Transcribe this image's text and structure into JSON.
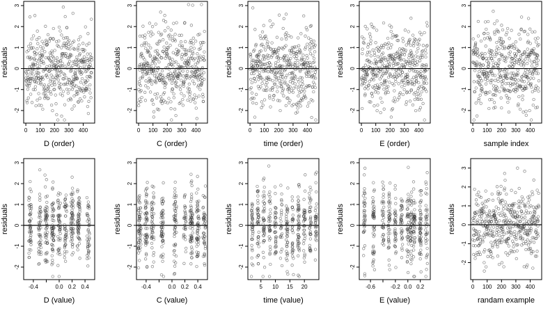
{
  "chart_data": [
    {
      "type": "scatter",
      "xlabel": "D (order)",
      "ylabel": "residuals",
      "xlim": [
        -15,
        480
      ],
      "ylim": [
        -2.6,
        3.2
      ],
      "xticks": [
        0,
        100,
        200,
        300,
        400
      ],
      "yticks": [
        -2,
        -1,
        0,
        1,
        2,
        3
      ],
      "reference_line_y": 0,
      "grid": false,
      "point_color": "#333333",
      "xmode": "order",
      "pattern": "flat"
    },
    {
      "type": "scatter",
      "xlabel": "C (order)",
      "ylabel": "residuals",
      "xlim": [
        -15,
        480
      ],
      "ylim": [
        -2.6,
        3.2
      ],
      "xticks": [
        0,
        100,
        200,
        300,
        400
      ],
      "yticks": [
        -2,
        -1,
        0,
        1,
        2,
        3
      ],
      "reference_line_y": 0,
      "grid": false,
      "point_color": "#333333",
      "xmode": "order",
      "pattern": "flat"
    },
    {
      "type": "scatter",
      "xlabel": "time (order)",
      "ylabel": "residuals",
      "xlim": [
        -15,
        480
      ],
      "ylim": [
        -2.6,
        3.2
      ],
      "xticks": [
        0,
        100,
        200,
        300,
        400
      ],
      "yticks": [
        -2,
        -1,
        0,
        1,
        2,
        3
      ],
      "reference_line_y": 0,
      "grid": false,
      "point_color": "#333333",
      "xmode": "order",
      "pattern": "flat"
    },
    {
      "type": "scatter",
      "xlabel": "E (order)",
      "ylabel": "residuals",
      "xlim": [
        -15,
        480
      ],
      "ylim": [
        -2.6,
        3.2
      ],
      "xticks": [
        0,
        100,
        200,
        300,
        400
      ],
      "yticks": [
        -2,
        -1,
        0,
        1,
        2,
        3
      ],
      "reference_line_y": 0,
      "grid": false,
      "point_color": "#333333",
      "xmode": "order",
      "pattern": "flat"
    },
    {
      "type": "scatter",
      "xlabel": "sample index",
      "ylabel": "residuals",
      "xlim": [
        -15,
        480
      ],
      "ylim": [
        -2.6,
        3.2
      ],
      "xticks": [
        0,
        100,
        200,
        300,
        400
      ],
      "yticks": [
        -2,
        -1,
        0,
        1,
        2,
        3
      ],
      "reference_line_y": 0,
      "grid": false,
      "point_color": "#333333",
      "xmode": "order",
      "pattern": "flat"
    },
    {
      "type": "scatter",
      "xlabel": "D (value)",
      "ylabel": "residuals",
      "xlim": [
        -0.55,
        0.55
      ],
      "ylim": [
        -2.6,
        3.2
      ],
      "xticks": [
        -0.4,
        -0.2,
        0.0,
        0.2,
        0.4
      ],
      "xticklabels": [
        "-0.4",
        "",
        "0.0",
        "0.2",
        "0.4"
      ],
      "yticks": [
        -2,
        -1,
        0,
        1,
        2,
        3
      ],
      "reference_line_y": 0,
      "grid": false,
      "point_color": "#333333",
      "xmode": "value",
      "stripes": [
        -0.45,
        -0.3,
        -0.2,
        -0.1,
        0.0,
        0.1,
        0.2,
        0.3,
        0.45
      ],
      "jitter": 0.02
    },
    {
      "type": "scatter",
      "xlabel": "C (value)",
      "ylabel": "residuals",
      "xlim": [
        -0.55,
        0.55
      ],
      "ylim": [
        -2.6,
        3.2
      ],
      "xticks": [
        -0.4,
        -0.2,
        0.0,
        0.2,
        0.4
      ],
      "xticklabels": [
        "-0.4",
        "",
        "0.0",
        "0.2",
        "0.4"
      ],
      "yticks": [
        -2,
        -1,
        0,
        1,
        2,
        3
      ],
      "reference_line_y": 0,
      "grid": false,
      "point_color": "#333333",
      "xmode": "value",
      "stripes": [
        -0.5,
        -0.4,
        -0.3,
        -0.15,
        0.05,
        0.2,
        0.3,
        0.4,
        0.5
      ],
      "jitter": 0.02
    },
    {
      "type": "scatter",
      "xlabel": "time (value)",
      "ylabel": "residuals",
      "xlim": [
        0.5,
        25
      ],
      "ylim": [
        -2.6,
        3.2
      ],
      "xticks": [
        5,
        10,
        15,
        20
      ],
      "yticks": [
        -2,
        -1,
        0,
        1,
        2,
        3
      ],
      "reference_line_y": 0,
      "grid": false,
      "point_color": "#333333",
      "xmode": "value",
      "stripes": [
        2,
        4,
        6,
        8,
        10,
        12,
        14,
        16,
        18,
        20,
        22,
        24
      ],
      "jitter": 0.3
    },
    {
      "type": "scatter",
      "xlabel": "E (value)",
      "ylabel": "residuals",
      "xlim": [
        -0.78,
        0.36
      ],
      "ylim": [
        -2.6,
        3.2
      ],
      "xticks": [
        -0.6,
        -0.4,
        -0.2,
        0.0,
        0.2
      ],
      "xticklabels": [
        "-0.6",
        "",
        "-0.2",
        "0.0",
        "0.2"
      ],
      "yticks": [
        -2,
        -1,
        0,
        1,
        2,
        3
      ],
      "reference_line_y": 0,
      "grid": false,
      "point_color": "#333333",
      "xmode": "value",
      "stripes": [
        -0.7,
        -0.55,
        -0.4,
        -0.3,
        -0.2,
        -0.1,
        0.0,
        0.05,
        0.1,
        0.2,
        0.3
      ],
      "jitter": 0.015
    },
    {
      "type": "scatter",
      "xlabel": "randam example",
      "ylabel": "residuals",
      "xlim": [
        -15,
        480
      ],
      "ylim": [
        -2.9,
        3.5
      ],
      "xticks": [
        0,
        100,
        200,
        300,
        400
      ],
      "yticks": [
        -2,
        -1,
        0,
        1,
        2,
        3
      ],
      "reference_line_y": 0,
      "grid": false,
      "point_color": "#333333",
      "xmode": "order",
      "pattern": "flat"
    }
  ]
}
